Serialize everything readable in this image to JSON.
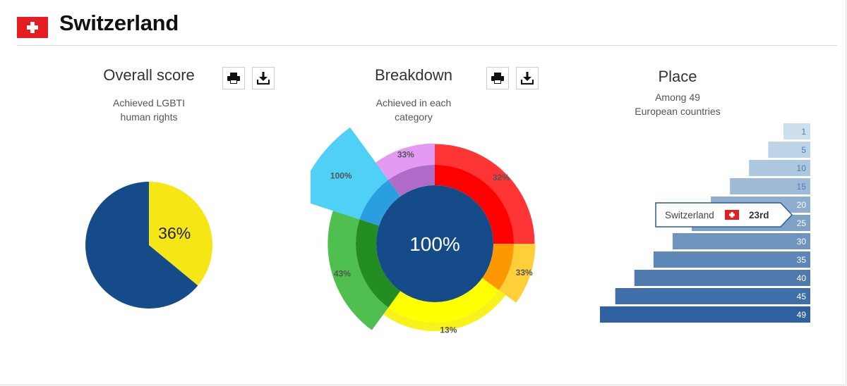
{
  "header": {
    "country": "Switzerland",
    "flag_icon": "swiss-flag-icon"
  },
  "panels": {
    "overall": {
      "title": "Overall score",
      "subtitle_line1": "Achieved LGBTI",
      "subtitle_line2": "human rights"
    },
    "breakdown": {
      "title": "Breakdown",
      "subtitle_line1": "Achieved in each",
      "subtitle_line2": "category"
    },
    "place": {
      "title": "Place",
      "subtitle_line1": "Among 49",
      "subtitle_line2": "European countries"
    }
  },
  "icons": {
    "print": "print-icon",
    "download": "download-icon"
  },
  "colors": {
    "navy": "#164b8a",
    "yellow": "#f7e616",
    "white": "#ffffff"
  },
  "chart_data": [
    {
      "type": "pie",
      "values": [
        36,
        64
      ],
      "colors": [
        "#f7e616",
        "#164b8a"
      ],
      "data_labels": [
        "36%"
      ]
    },
    {
      "type": "pie",
      "center_label": "100%",
      "segments": [
        {
          "label": "32%",
          "value": 32,
          "color": "#ff0000",
          "outer": "#ff3535",
          "span": 90
        },
        {
          "label": "33%",
          "value": 33,
          "color": "#ff9800",
          "outer": "#ffcf3a",
          "span": 36
        },
        {
          "label": "13%",
          "value": 13,
          "color": "#ffff00",
          "outer": "#f7f21a",
          "span": 90
        },
        {
          "label": "43%",
          "value": 43,
          "color": "#238c23",
          "outer": "#4fbf4f",
          "span": 72
        },
        {
          "label": "100%",
          "value": 100,
          "color": "#2a9fe0",
          "outer": "#4fd0f5",
          "span": 36
        },
        {
          "label": "33%",
          "value": 33,
          "color": "#b06ac8",
          "outer": "#e49af2",
          "span": 36
        }
      ]
    },
    {
      "type": "bar",
      "categories": [
        "1",
        "5",
        "10",
        "15",
        "20",
        "25",
        "30",
        "35",
        "40",
        "45",
        "49"
      ],
      "values": [
        1,
        5,
        10,
        15,
        20,
        25,
        30,
        35,
        40,
        45,
        49
      ],
      "highlight": {
        "country": "Switzerland",
        "rank": "23rd",
        "rank_value": 23
      }
    }
  ]
}
